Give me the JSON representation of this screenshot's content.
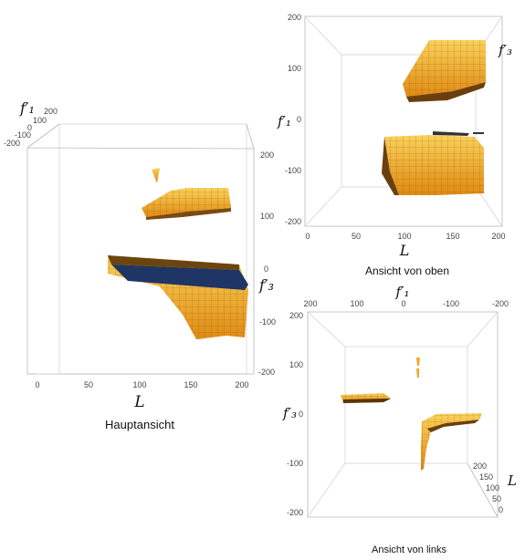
{
  "main_view": {
    "caption": "Hauptansicht",
    "x_axis_label": "L",
    "vertical_axis_label": "f′₁",
    "depth_axis_label": "f′₃",
    "bottom_ticks": [
      "0",
      "50",
      "100",
      "150",
      "200"
    ],
    "top_ticks": [
      "200",
      "100",
      "0",
      "-100",
      "-200"
    ],
    "right_ticks": [
      "200",
      "100",
      "0",
      "-100",
      "-200"
    ]
  },
  "top_view": {
    "caption": "Ansicht von oben",
    "x_axis_label": "L",
    "y_axis_label": "f′₁",
    "corner_label": "f′₃",
    "left_ticks": [
      "200",
      "100",
      "0",
      "-100",
      "-200"
    ],
    "bottom_ticks": [
      "0",
      "50",
      "100",
      "150",
      "200"
    ]
  },
  "left_view": {
    "caption": "Ansicht von links",
    "top_axis_label": "f′₁",
    "y_axis_label": "f′₃",
    "depth_axis_label": "L",
    "top_ticks": [
      "200",
      "100",
      "0",
      "-100",
      "-200"
    ],
    "left_ticks": [
      "200",
      "100",
      "0",
      "-100",
      "-200"
    ],
    "depth_ticks": [
      "200",
      "150",
      "100",
      "50",
      "0"
    ]
  },
  "colors": {
    "surface": "#f2a623",
    "surface_light": "#f7c24a",
    "surface_dark": "#7a4a10",
    "cut_plane": "#1e3566",
    "box": "#b8b8b8"
  }
}
